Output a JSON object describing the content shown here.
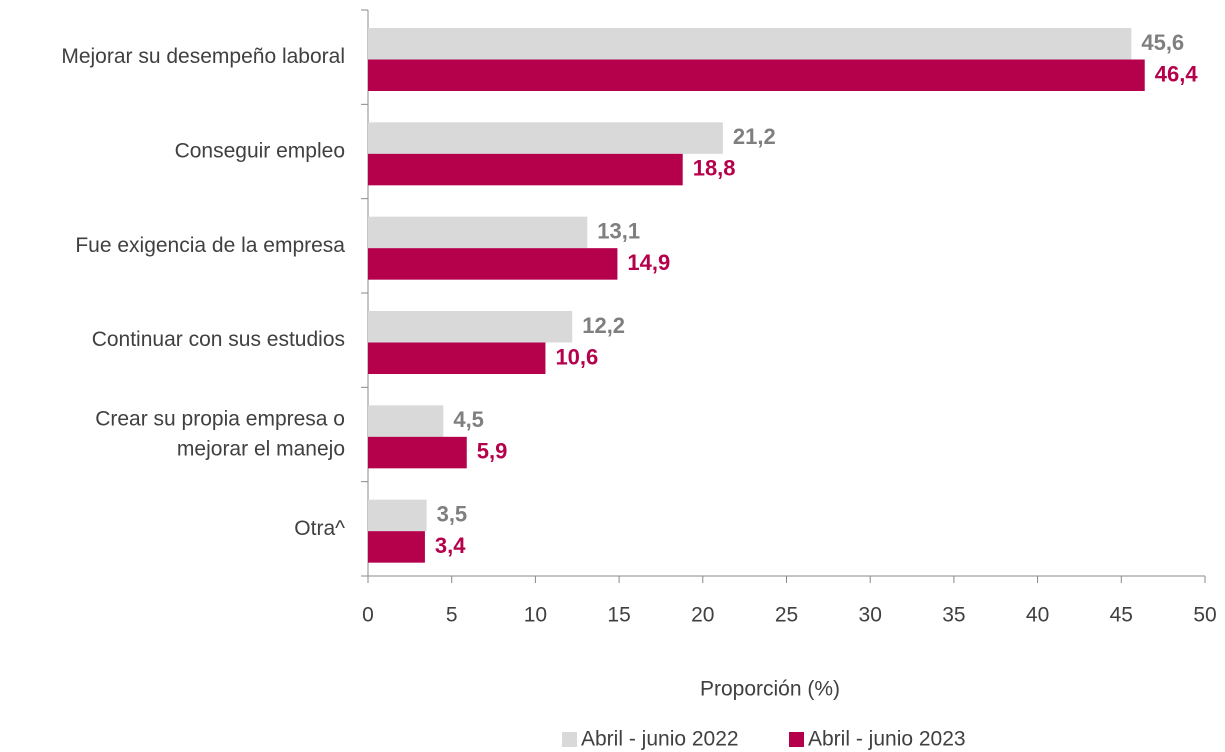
{
  "chart_data": {
    "type": "bar",
    "orientation": "horizontal",
    "categories": [
      "Mejorar su desempeño laboral",
      "Conseguir empleo",
      "Fue exigencia de la empresa",
      "Continuar con sus estudios",
      "Crear su propia empresa o\nmejorar el manejo",
      "Otra^"
    ],
    "series": [
      {
        "name": "Abril - junio 2022",
        "color": "#d9d9d9",
        "label_color": "#7f7f7f",
        "values": [
          45.6,
          21.2,
          13.1,
          12.2,
          4.5,
          3.5
        ],
        "value_labels": [
          "45,6",
          "21,2",
          "13,1",
          "12,2",
          "4,5",
          "3,5"
        ]
      },
      {
        "name": "Abril - junio 2023",
        "color": "#b5004b",
        "label_color": "#b5004b",
        "values": [
          46.4,
          18.8,
          14.9,
          10.6,
          5.9,
          3.4
        ],
        "value_labels": [
          "46,4",
          "18,8",
          "14,9",
          "10,6",
          "5,9",
          "3,4"
        ]
      }
    ],
    "xlabel": "Proporción (%)",
    "xlim": [
      0,
      50
    ],
    "xticks": [
      0,
      5,
      10,
      15,
      20,
      25,
      30,
      35,
      40,
      45,
      50
    ],
    "grid": false,
    "legend": "bottom"
  }
}
